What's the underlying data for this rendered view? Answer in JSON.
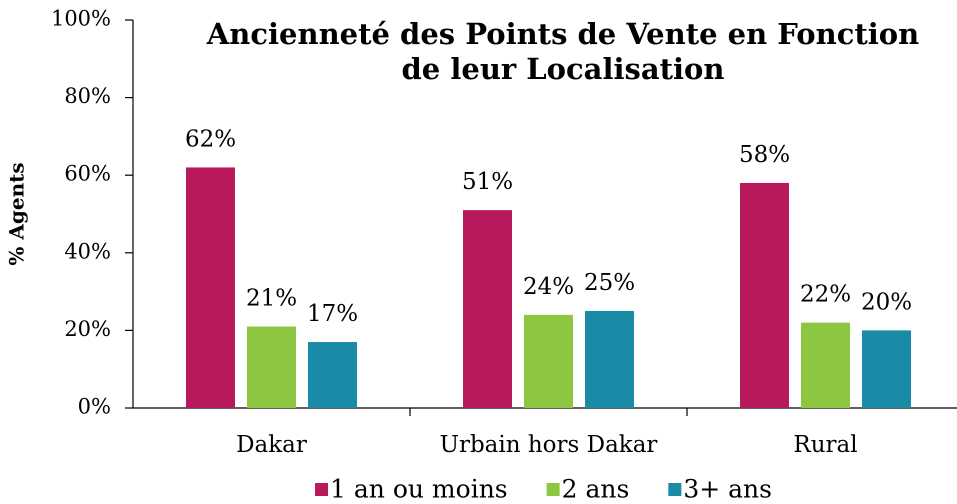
{
  "chart_data": {
    "type": "bar",
    "title": "Ancienneté des Points de Vente en Fonction de leur Localisation",
    "y_label": "% Agents",
    "categories": [
      "Dakar",
      "Urbain hors Dakar",
      "Rural"
    ],
    "series": [
      {
        "name": "1 an ou moins",
        "color": "#b8195c",
        "values": [
          62,
          51,
          58
        ],
        "value_labels": [
          "62%",
          "51%",
          "58%"
        ]
      },
      {
        "name": "2 ans",
        "color": "#8dc641",
        "values": [
          21,
          24,
          22
        ],
        "value_labels": [
          "21%",
          "24%",
          "22%"
        ]
      },
      {
        "name": "3+ ans",
        "color": "#1a8ba7",
        "values": [
          17,
          25,
          20
        ],
        "value_labels": [
          "17%",
          "25%",
          "20%"
        ]
      }
    ],
    "ylim": [
      0,
      100
    ],
    "yticks": [
      {
        "value": 0,
        "label": "0%"
      },
      {
        "value": 20,
        "label": "20%"
      },
      {
        "value": 40,
        "label": "40%"
      },
      {
        "value": 60,
        "label": "60%"
      },
      {
        "value": 80,
        "label": "80%"
      },
      {
        "value": 100,
        "label": "100%"
      }
    ],
    "legend": "bottom"
  }
}
